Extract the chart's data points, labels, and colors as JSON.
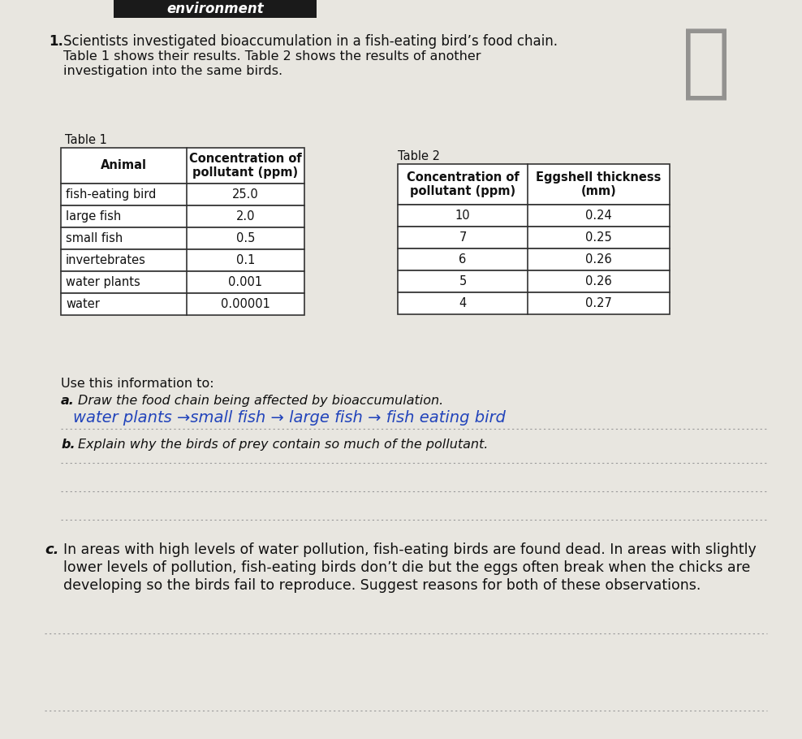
{
  "page_bg": "#e8e6e0",
  "header_bg": "#1a1a1a",
  "header_text": "environment",
  "question_number": "1.",
  "intro_line1": "Scientists investigated bioaccumulation in a fish-eating bird’s food chain.",
  "intro_line2": "Table 1 shows their results. Table 2 shows the results of another",
  "intro_line3": "investigation into the same birds.",
  "table1_title": "Table 1",
  "table1_headers": [
    "Animal",
    "Concentration of\npollutant (ppm)"
  ],
  "table1_rows": [
    [
      "fish-eating bird",
      "25.0"
    ],
    [
      "large fish",
      "2.0"
    ],
    [
      "small fish",
      "0.5"
    ],
    [
      "invertebrates",
      "0.1"
    ],
    [
      "water plants",
      "0.001"
    ],
    [
      "water",
      "0.00001"
    ]
  ],
  "table2_title": "Table 2",
  "table2_headers": [
    "Concentration of\npollutant (ppm)",
    "Eggshell thickness\n(mm)"
  ],
  "table2_rows": [
    [
      "10",
      "0.24"
    ],
    [
      "7",
      "0.25"
    ],
    [
      "6",
      "0.26"
    ],
    [
      "5",
      "0.26"
    ],
    [
      "4",
      "0.27"
    ]
  ],
  "use_text": "Use this information to:",
  "qa_label": "a.",
  "qa_text": "Draw the food chain being affected by bioaccumulation.",
  "qa_answer_parts": [
    "water plants ",
    "→",
    "small fish ",
    "→",
    " large fish ",
    "→",
    " fish eating bird"
  ],
  "qa_answer_full": "water plants →small fish → large fish → fish eating bird",
  "qb_label": "b.",
  "qb_text": "Explain why the birds of prey contain so much of the pollutant.",
  "qc_label": "c.",
  "qc_line1": "In areas with high levels of water pollution, fish-eating birds are found dead. In areas with slightly",
  "qc_line2": "lower levels of pollution, fish-eating birds don’t die but the eggs often break when the chicks are",
  "qc_line3": "developing so the birds fail to reproduce. Suggest reasons for both of these observations.",
  "dotted_line_color": "#999999",
  "table_border_color": "#333333",
  "text_color": "#111111",
  "handwriting_color": "#2244bb",
  "font_size_body": 11.5,
  "font_size_table": 10.5,
  "font_size_heading": 12
}
